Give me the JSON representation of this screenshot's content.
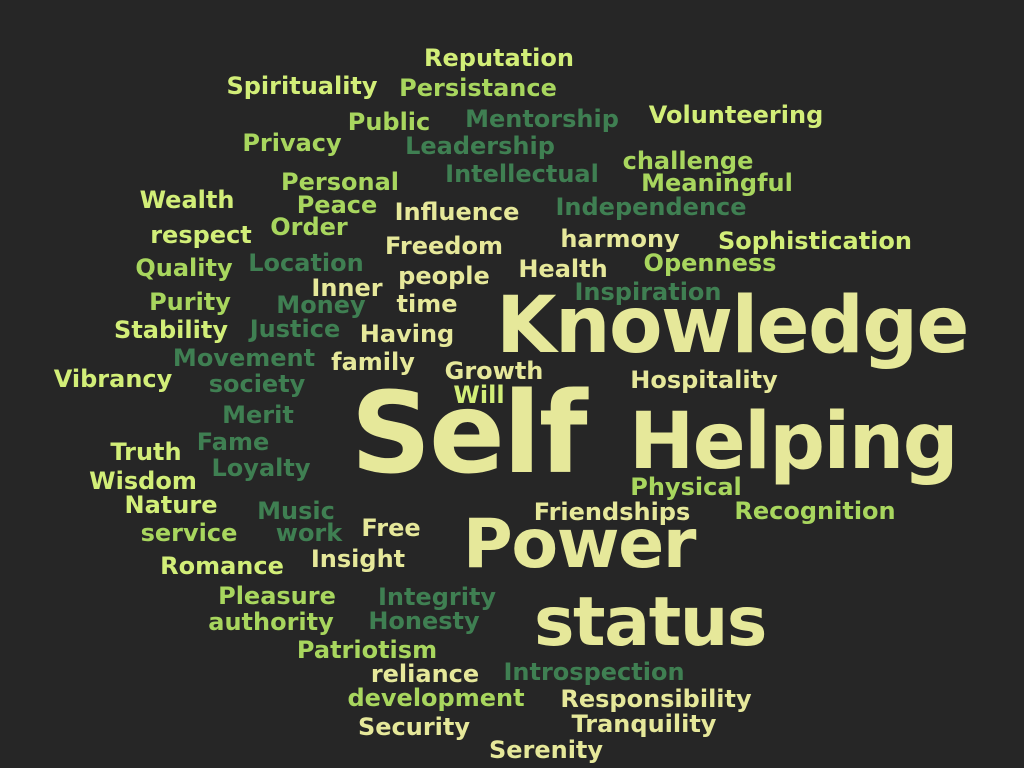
{
  "colors": {
    "background": "#262626",
    "cream": "#E6E89A",
    "yellow_green": "#D2EE78",
    "light_green": "#A8D65E",
    "medium_green": "#6AA84F",
    "dark_green": "#3F7F52"
  },
  "words": [
    {
      "text": "Reputation",
      "weight": 2,
      "tone": "yellow_green"
    },
    {
      "text": "Spirituality",
      "weight": 2,
      "tone": "yellow_green"
    },
    {
      "text": "Persistance",
      "weight": 2,
      "tone": "light_green"
    },
    {
      "text": "Volunteering",
      "weight": 2,
      "tone": "yellow_green"
    },
    {
      "text": "Public",
      "weight": 2,
      "tone": "light_green"
    },
    {
      "text": "Mentorship",
      "weight": 2,
      "tone": "dark_green"
    },
    {
      "text": "Privacy",
      "weight": 2,
      "tone": "light_green"
    },
    {
      "text": "Leadership",
      "weight": 2,
      "tone": "dark_green"
    },
    {
      "text": "challenge",
      "weight": 2,
      "tone": "light_green"
    },
    {
      "text": "Intellectual",
      "weight": 2,
      "tone": "dark_green"
    },
    {
      "text": "Personal",
      "weight": 2,
      "tone": "light_green"
    },
    {
      "text": "Meaningful",
      "weight": 2,
      "tone": "light_green"
    },
    {
      "text": "Wealth",
      "weight": 2,
      "tone": "yellow_green"
    },
    {
      "text": "Peace",
      "weight": 2,
      "tone": "light_green"
    },
    {
      "text": "Influence",
      "weight": 2,
      "tone": "cream"
    },
    {
      "text": "Independence",
      "weight": 2,
      "tone": "dark_green"
    },
    {
      "text": "respect",
      "weight": 2,
      "tone": "yellow_green"
    },
    {
      "text": "Order",
      "weight": 2,
      "tone": "light_green"
    },
    {
      "text": "Freedom",
      "weight": 2,
      "tone": "cream"
    },
    {
      "text": "harmony",
      "weight": 2,
      "tone": "cream"
    },
    {
      "text": "Sophistication",
      "weight": 2,
      "tone": "yellow_green"
    },
    {
      "text": "Quality",
      "weight": 2,
      "tone": "light_green"
    },
    {
      "text": "Location",
      "weight": 2,
      "tone": "dark_green"
    },
    {
      "text": "people",
      "weight": 2,
      "tone": "cream"
    },
    {
      "text": "Health",
      "weight": 2,
      "tone": "cream"
    },
    {
      "text": "Openness",
      "weight": 2,
      "tone": "light_green"
    },
    {
      "text": "Inner",
      "weight": 2,
      "tone": "cream"
    },
    {
      "text": "Inspiration",
      "weight": 2,
      "tone": "dark_green"
    },
    {
      "text": "Purity",
      "weight": 2,
      "tone": "light_green"
    },
    {
      "text": "Money",
      "weight": 2,
      "tone": "dark_green"
    },
    {
      "text": "time",
      "weight": 2,
      "tone": "cream"
    },
    {
      "text": "Knowledge",
      "weight": 6,
      "tone": "cream"
    },
    {
      "text": "Stability",
      "weight": 2,
      "tone": "yellow_green"
    },
    {
      "text": "Justice",
      "weight": 2,
      "tone": "dark_green"
    },
    {
      "text": "Having",
      "weight": 2,
      "tone": "cream"
    },
    {
      "text": "Movement",
      "weight": 2,
      "tone": "dark_green"
    },
    {
      "text": "family",
      "weight": 2,
      "tone": "cream"
    },
    {
      "text": "Vibrancy",
      "weight": 2,
      "tone": "yellow_green"
    },
    {
      "text": "society",
      "weight": 2,
      "tone": "dark_green"
    },
    {
      "text": "Growth",
      "weight": 2,
      "tone": "cream"
    },
    {
      "text": "Hospitality",
      "weight": 2,
      "tone": "cream"
    },
    {
      "text": "Will",
      "weight": 2,
      "tone": "yellow_green"
    },
    {
      "text": "Merit",
      "weight": 2,
      "tone": "dark_green"
    },
    {
      "text": "Self",
      "weight": 9,
      "tone": "cream"
    },
    {
      "text": "Helping",
      "weight": 6,
      "tone": "cream"
    },
    {
      "text": "Truth",
      "weight": 2,
      "tone": "yellow_green"
    },
    {
      "text": "Fame",
      "weight": 2,
      "tone": "dark_green"
    },
    {
      "text": "Loyalty",
      "weight": 2,
      "tone": "dark_green"
    },
    {
      "text": "Wisdom",
      "weight": 2,
      "tone": "yellow_green"
    },
    {
      "text": "Physical",
      "weight": 2,
      "tone": "light_green"
    },
    {
      "text": "Nature",
      "weight": 2,
      "tone": "yellow_green"
    },
    {
      "text": "Music",
      "weight": 2,
      "tone": "dark_green"
    },
    {
      "text": "Friendships",
      "weight": 2,
      "tone": "cream"
    },
    {
      "text": "Recognition",
      "weight": 2,
      "tone": "light_green"
    },
    {
      "text": "work",
      "weight": 2,
      "tone": "dark_green"
    },
    {
      "text": "Free",
      "weight": 2,
      "tone": "cream"
    },
    {
      "text": "service",
      "weight": 2,
      "tone": "light_green"
    },
    {
      "text": "Power",
      "weight": 6,
      "tone": "cream"
    },
    {
      "text": "Insight",
      "weight": 2,
      "tone": "cream"
    },
    {
      "text": "Romance",
      "weight": 2,
      "tone": "yellow_green"
    },
    {
      "text": "Pleasure",
      "weight": 2,
      "tone": "light_green"
    },
    {
      "text": "Integrity",
      "weight": 2,
      "tone": "dark_green"
    },
    {
      "text": "authority",
      "weight": 2,
      "tone": "light_green"
    },
    {
      "text": "Honesty",
      "weight": 2,
      "tone": "dark_green"
    },
    {
      "text": "status",
      "weight": 6,
      "tone": "cream"
    },
    {
      "text": "Patriotism",
      "weight": 2,
      "tone": "light_green"
    },
    {
      "text": "reliance",
      "weight": 2,
      "tone": "cream"
    },
    {
      "text": "Introspection",
      "weight": 2,
      "tone": "dark_green"
    },
    {
      "text": "development",
      "weight": 2,
      "tone": "light_green"
    },
    {
      "text": "Responsibility",
      "weight": 2,
      "tone": "cream"
    },
    {
      "text": "Security",
      "weight": 2,
      "tone": "cream"
    },
    {
      "text": "Tranquility",
      "weight": 2,
      "tone": "cream"
    },
    {
      "text": "Serenity",
      "weight": 2,
      "tone": "cream"
    }
  ]
}
